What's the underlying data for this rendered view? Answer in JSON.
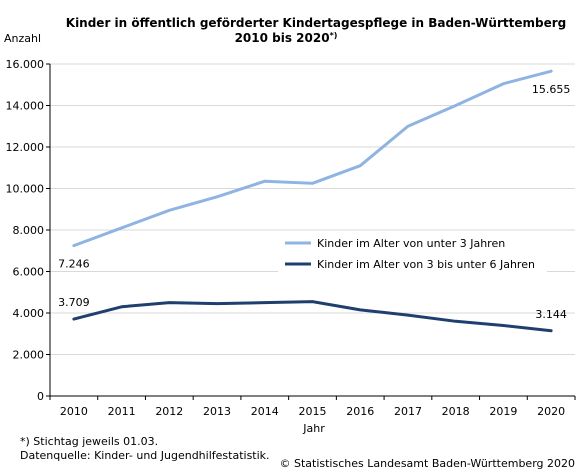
{
  "chart_data": {
    "type": "line",
    "title_line1": "Kinder in öffentlich geförderter Kindertagespflege in Baden-Württemberg",
    "title_line2": "2010 bis 2020",
    "title_footnote_marker": "*)",
    "ylabel": "Anzahl",
    "xlabel": "Jahr",
    "x": [
      "2010",
      "2011",
      "2012",
      "2013",
      "2014",
      "2015",
      "2016",
      "2017",
      "2018",
      "2019",
      "2020"
    ],
    "ylim": [
      0,
      16000
    ],
    "yticks": [
      0,
      2000,
      4000,
      6000,
      8000,
      10000,
      12000,
      14000,
      16000
    ],
    "ytick_labels": [
      "0",
      "2.000",
      "4.000",
      "6.000",
      "8.000",
      "10.000",
      "12.000",
      "14.000",
      "16.000"
    ],
    "grid": "horizontal",
    "legend_position": "center-right",
    "series": [
      {
        "name": "Kinder im Alter von unter 3 Jahren",
        "color": "#8eb4e3",
        "values": [
          7246,
          8100,
          8950,
          9600,
          10350,
          10250,
          11100,
          13000,
          14000,
          15050,
          15655
        ]
      },
      {
        "name": "Kinder im Alter von 3 bis unter 6 Jahren",
        "color": "#1f3f6e",
        "values": [
          3709,
          4300,
          4500,
          4450,
          4500,
          4550,
          4150,
          3900,
          3600,
          3400,
          3144
        ]
      }
    ],
    "annotations": [
      {
        "text": "7.246",
        "series": 0,
        "index": 0,
        "position": "below"
      },
      {
        "text": "15.655",
        "series": 0,
        "index": 10,
        "position": "below"
      },
      {
        "text": "3.709",
        "series": 1,
        "index": 0,
        "position": "above"
      },
      {
        "text": "3.144",
        "series": 1,
        "index": 10,
        "position": "above"
      }
    ]
  },
  "footer": {
    "note": "*) Stichtag jeweils 01.03.",
    "source": "Datenquelle: Kinder- und Jugendhilfestatistik.",
    "copyright": "© Statistisches Landesamt Baden-Württemberg 2020"
  }
}
